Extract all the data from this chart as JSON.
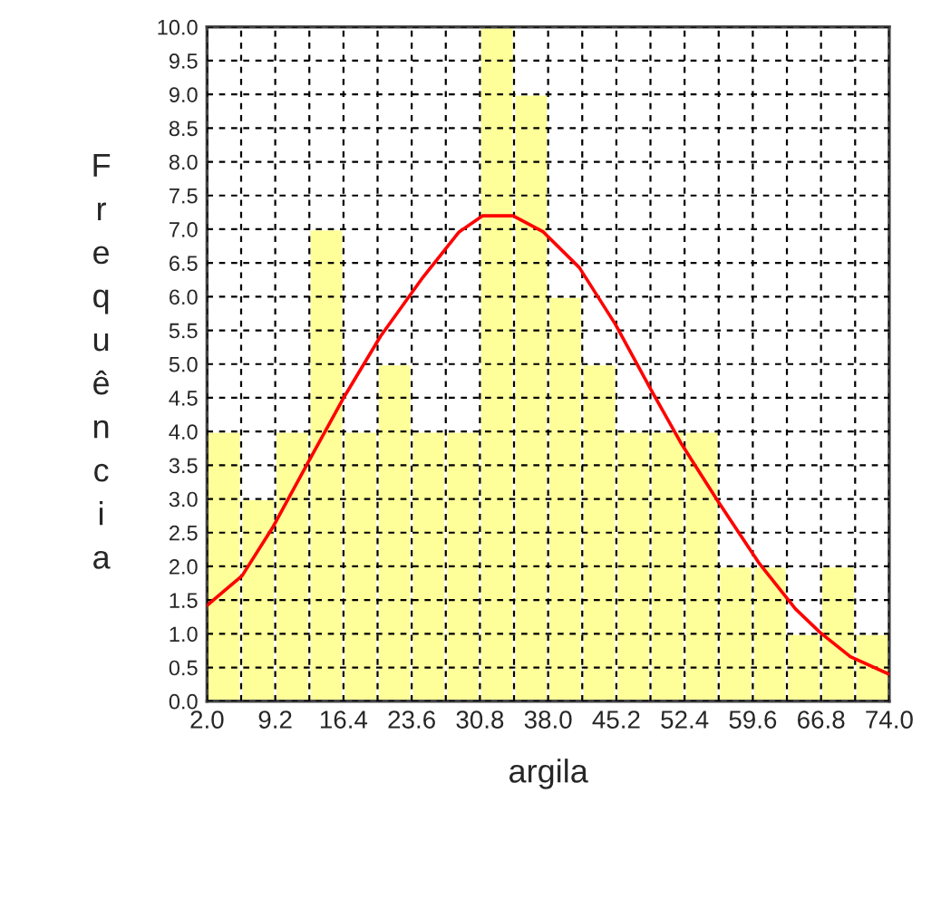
{
  "chart_data": {
    "type": "histogram",
    "xlabel": "argila",
    "ylabel": "Frequência",
    "bins": [
      2.0,
      5.6,
      9.2,
      12.8,
      16.4,
      20.0,
      23.6,
      27.2,
      30.8,
      34.4,
      38.0,
      41.6,
      45.2,
      48.8,
      52.4,
      56.0,
      59.6,
      63.2,
      66.8,
      70.4,
      74.0
    ],
    "values": [
      4,
      3,
      4,
      7,
      4,
      5,
      4,
      4,
      10,
      9,
      6,
      5,
      4,
      4,
      4,
      2,
      2,
      1,
      2,
      1
    ],
    "color": "#ffff99",
    "series": [
      {
        "type": "line",
        "color": "#ff0000",
        "x": [
          2.0,
          5.7,
          8.9,
          12.7,
          16.5,
          20.3,
          24.8,
          28.6,
          31.1,
          34.3,
          37.5,
          41.3,
          45.1,
          48.9,
          52.1,
          55.9,
          60.3,
          64.1,
          66.7,
          69.9,
          74.0
        ],
        "values": [
          1.42,
          1.86,
          2.57,
          3.55,
          4.52,
          5.41,
          6.29,
          6.96,
          7.2,
          7.2,
          6.96,
          6.43,
          5.59,
          4.61,
          3.81,
          2.97,
          2.04,
          1.37,
          1.02,
          0.66,
          0.4
        ]
      }
    ],
    "xlim": [
      2.0,
      74.0
    ],
    "ylim": [
      0.0,
      10.0
    ],
    "xticks": [
      {
        "value": 2,
        "label": "2.0"
      },
      {
        "value": 5.6,
        "label": null
      },
      9.2,
      {
        "value": 12.8,
        "label": null
      },
      16.4,
      {
        "value": 20.0,
        "label": null
      },
      23.6,
      {
        "value": 27.2,
        "label": null
      },
      30.8,
      {
        "value": 34.4,
        "label": null
      },
      {
        "value": 38,
        "label": "38.0"
      },
      {
        "value": 41.6,
        "label": null
      },
      45.2,
      {
        "value": 48.8,
        "label": null
      },
      52.4,
      {
        "value": 56.0,
        "label": null
      },
      59.6,
      {
        "value": 63.2,
        "label": null
      },
      66.8,
      {
        "value": 70.4,
        "label": null
      },
      {
        "value": 74,
        "label": "74.0"
      }
    ],
    "yticks": [
      {
        "value": 0,
        "label": "0.0"
      },
      0.5,
      {
        "value": 1,
        "label": "1.0"
      },
      1.5,
      {
        "value": 2,
        "label": "2.0"
      },
      2.5,
      {
        "value": 3,
        "label": "3.0"
      },
      3.5,
      {
        "value": 4,
        "label": "4.0"
      },
      4.5,
      {
        "value": 5,
        "label": "5.0"
      },
      5.5,
      {
        "value": 6,
        "label": "6.0"
      },
      6.5,
      {
        "value": 7,
        "label": "7.0"
      },
      7.5,
      {
        "value": 8,
        "label": "8.0"
      },
      8.5,
      {
        "value": 9,
        "label": "9.0"
      },
      9.5,
      {
        "value": 10,
        "label": "10.0"
      }
    ],
    "grid": true,
    "legend": false
  }
}
